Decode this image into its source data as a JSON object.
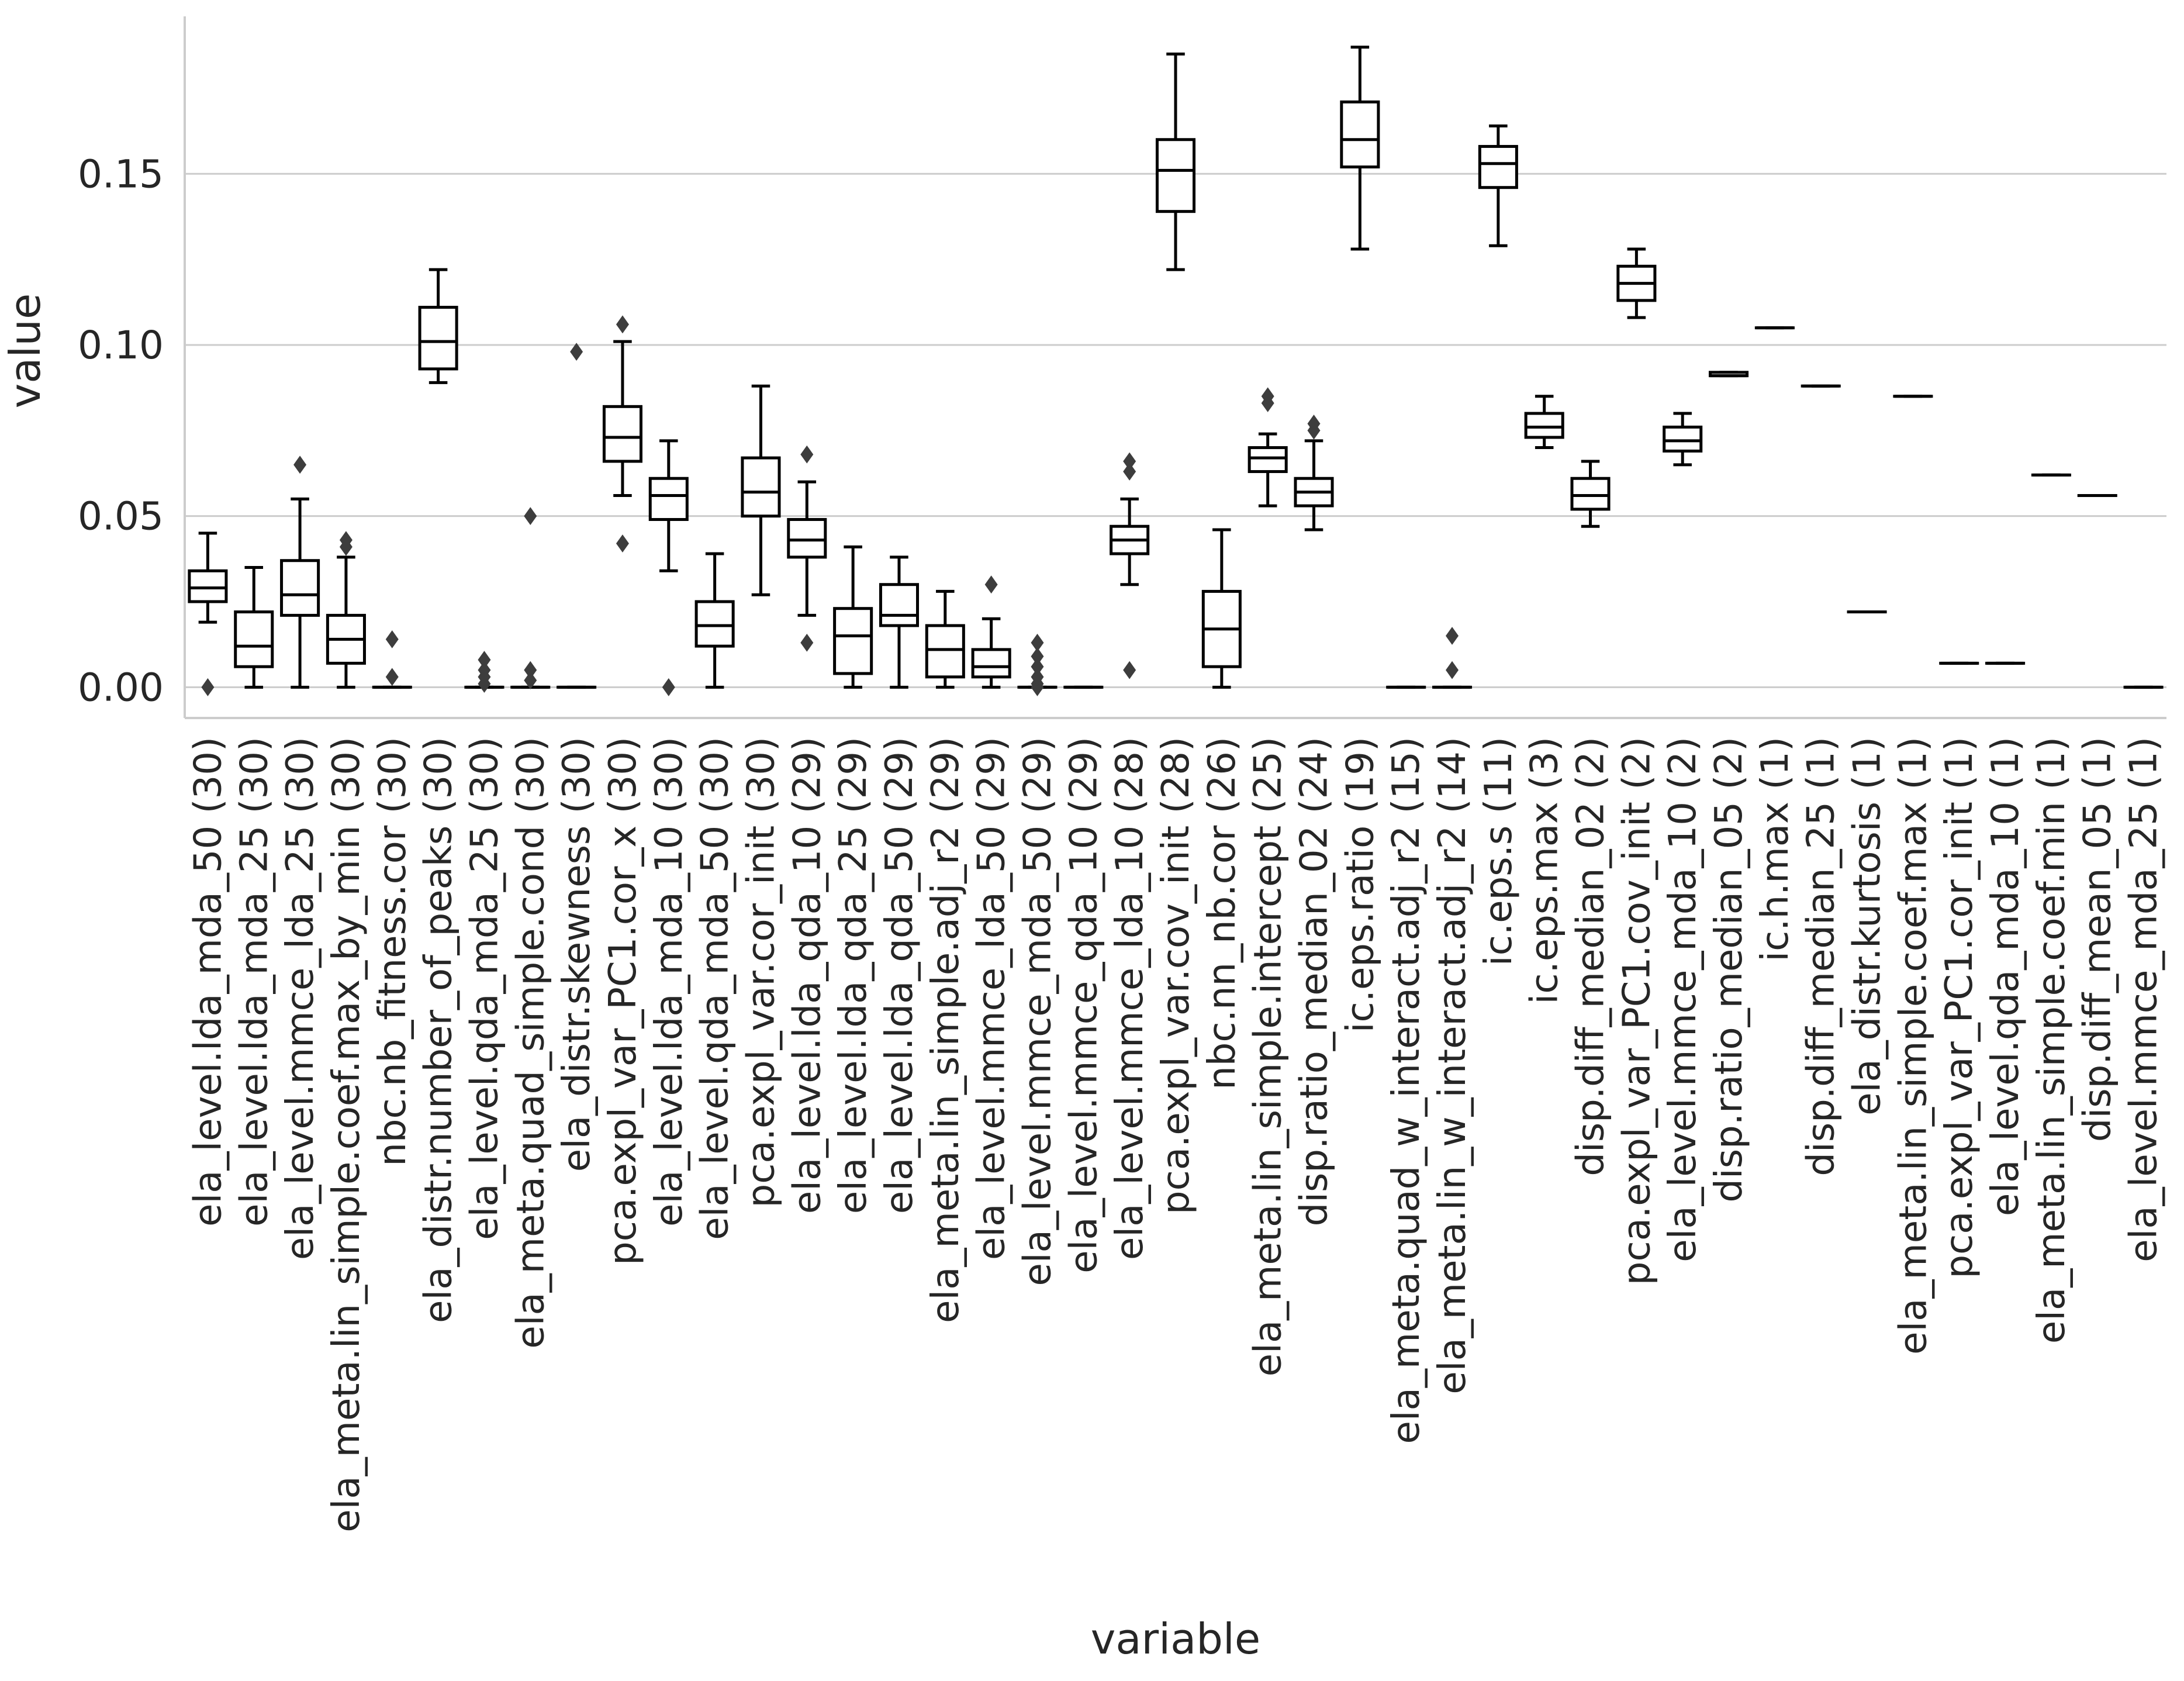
{
  "chart_data": {
    "type": "box",
    "xlabel": "variable",
    "ylabel": "value",
    "ylim": [
      -0.009,
      0.196
    ],
    "yticks": [
      0.0,
      0.05,
      0.1,
      0.15
    ],
    "ytick_labels": [
      "0.00",
      "0.05",
      "0.10",
      "0.15"
    ],
    "grid": "horizontal",
    "box_color": "#ffffff",
    "line_color": "#000000",
    "grid_color": "#cccccc",
    "categories": [
      "ela_level.lda_mda_50 (30)",
      "ela_level.lda_mda_25 (30)",
      "ela_level.mmce_lda_25 (30)",
      "ela_meta.lin_simple.coef.max_by_min (30)",
      "nbc.nb_fitness.cor (30)",
      "ela_distr.number_of_peaks (30)",
      "ela_level.qda_mda_25 (30)",
      "ela_meta.quad_simple.cond (30)",
      "ela_distr.skewness (30)",
      "pca.expl_var_PC1.cor_x (30)",
      "ela_level.lda_mda_10 (30)",
      "ela_level.qda_mda_50 (30)",
      "pca.expl_var.cor_init (30)",
      "ela_level.lda_qda_10 (29)",
      "ela_level.lda_qda_25 (29)",
      "ela_level.lda_qda_50 (29)",
      "ela_meta.lin_simple.adj_r2 (29)",
      "ela_level.mmce_lda_50 (29)",
      "ela_level.mmce_mda_50 (29)",
      "ela_level.mmce_qda_10 (29)",
      "ela_level.mmce_lda_10 (28)",
      "pca.expl_var.cov_init (28)",
      "nbc.nn_nb.cor (26)",
      "ela_meta.lin_simple.intercept (25)",
      "disp.ratio_median_02 (24)",
      "ic.eps.ratio (19)",
      "ela_meta.quad_w_interact.adj_r2 (15)",
      "ela_meta.lin_w_interact.adj_r2 (14)",
      "ic.eps.s (11)",
      "ic.eps.max (3)",
      "disp.diff_median_02 (2)",
      "pca.expl_var_PC1.cov_init (2)",
      "ela_level.mmce_mda_10 (2)",
      "disp.ratio_median_05 (2)",
      "ic.h.max (1)",
      "disp.diff_median_25 (1)",
      "ela_distr.kurtosis (1)",
      "ela_meta.lin_simple.coef.max (1)",
      "pca.expl_var_PC1.cor_init (1)",
      "ela_level.qda_mda_10 (1)",
      "ela_meta.lin_simple.coef.min (1)",
      "disp.diff_mean_05 (1)",
      "ela_level.mmce_mda_25 (1)"
    ],
    "boxes": [
      {
        "whislo": 0.019,
        "q1": 0.025,
        "med": 0.029,
        "q3": 0.034,
        "whishi": 0.045,
        "fliers": [
          0.0
        ]
      },
      {
        "whislo": 0.0,
        "q1": 0.006,
        "med": 0.012,
        "q3": 0.022,
        "whishi": 0.035,
        "fliers": []
      },
      {
        "whislo": 0.0,
        "q1": 0.021,
        "med": 0.027,
        "q3": 0.037,
        "whishi": 0.055,
        "fliers": [
          0.065
        ]
      },
      {
        "whislo": 0.0,
        "q1": 0.007,
        "med": 0.014,
        "q3": 0.021,
        "whishi": 0.038,
        "fliers": [
          0.041,
          0.043
        ]
      },
      {
        "whislo": 0.0,
        "q1": 0.0,
        "med": 0.0,
        "q3": 0.0,
        "whishi": 0.0,
        "fliers": [
          0.003,
          0.014
        ]
      },
      {
        "whislo": 0.089,
        "q1": 0.093,
        "med": 0.101,
        "q3": 0.111,
        "whishi": 0.122,
        "fliers": []
      },
      {
        "whislo": 0.0,
        "q1": 0.0,
        "med": 0.0,
        "q3": 0.0,
        "whishi": 0.0,
        "fliers": [
          0.001,
          0.003,
          0.005,
          0.008
        ]
      },
      {
        "whislo": 0.0,
        "q1": 0.0,
        "med": 0.0,
        "q3": 0.0,
        "whishi": 0.0,
        "fliers": [
          0.002,
          0.005,
          0.05
        ]
      },
      {
        "whislo": 0.0,
        "q1": 0.0,
        "med": 0.0,
        "q3": 0.0,
        "whishi": 0.0,
        "fliers": [
          0.098
        ]
      },
      {
        "whislo": 0.056,
        "q1": 0.066,
        "med": 0.073,
        "q3": 0.082,
        "whishi": 0.101,
        "fliers": [
          0.042,
          0.106
        ]
      },
      {
        "whislo": 0.034,
        "q1": 0.049,
        "med": 0.056,
        "q3": 0.061,
        "whishi": 0.072,
        "fliers": [
          0.0
        ]
      },
      {
        "whislo": 0.0,
        "q1": 0.012,
        "med": 0.018,
        "q3": 0.025,
        "whishi": 0.039,
        "fliers": []
      },
      {
        "whislo": 0.027,
        "q1": 0.05,
        "med": 0.057,
        "q3": 0.067,
        "whishi": 0.088,
        "fliers": []
      },
      {
        "whislo": 0.021,
        "q1": 0.038,
        "med": 0.043,
        "q3": 0.049,
        "whishi": 0.06,
        "fliers": [
          0.013,
          0.068
        ]
      },
      {
        "whislo": 0.0,
        "q1": 0.004,
        "med": 0.015,
        "q3": 0.023,
        "whishi": 0.041,
        "fliers": []
      },
      {
        "whislo": 0.0,
        "q1": 0.018,
        "med": 0.021,
        "q3": 0.03,
        "whishi": 0.038,
        "fliers": []
      },
      {
        "whislo": 0.0,
        "q1": 0.003,
        "med": 0.011,
        "q3": 0.018,
        "whishi": 0.028,
        "fliers": []
      },
      {
        "whislo": 0.0,
        "q1": 0.003,
        "med": 0.006,
        "q3": 0.011,
        "whishi": 0.02,
        "fliers": [
          0.03
        ]
      },
      {
        "whislo": 0.0,
        "q1": 0.0,
        "med": 0.0,
        "q3": 0.0,
        "whishi": 0.0,
        "fliers": [
          0.0,
          0.001,
          0.003,
          0.006,
          0.009,
          0.013
        ]
      },
      {
        "whislo": 0.0,
        "q1": 0.0,
        "med": 0.0,
        "q3": 0.0,
        "whishi": 0.0,
        "fliers": []
      },
      {
        "whislo": 0.03,
        "q1": 0.039,
        "med": 0.043,
        "q3": 0.047,
        "whishi": 0.055,
        "fliers": [
          0.005,
          0.063,
          0.066
        ]
      },
      {
        "whislo": 0.122,
        "q1": 0.139,
        "med": 0.151,
        "q3": 0.16,
        "whishi": 0.185,
        "fliers": []
      },
      {
        "whislo": 0.0,
        "q1": 0.006,
        "med": 0.017,
        "q3": 0.028,
        "whishi": 0.046,
        "fliers": []
      },
      {
        "whislo": 0.053,
        "q1": 0.063,
        "med": 0.067,
        "q3": 0.07,
        "whishi": 0.074,
        "fliers": [
          0.083,
          0.085
        ]
      },
      {
        "whislo": 0.046,
        "q1": 0.053,
        "med": 0.057,
        "q3": 0.061,
        "whishi": 0.072,
        "fliers": [
          0.075,
          0.077
        ]
      },
      {
        "whislo": 0.128,
        "q1": 0.152,
        "med": 0.16,
        "q3": 0.171,
        "whishi": 0.187,
        "fliers": []
      },
      {
        "whislo": 0.0,
        "q1": 0.0,
        "med": 0.0,
        "q3": 0.0,
        "whishi": 0.0,
        "fliers": []
      },
      {
        "whislo": 0.0,
        "q1": 0.0,
        "med": 0.0,
        "q3": 0.0,
        "whishi": 0.0,
        "fliers": [
          0.005,
          0.015
        ]
      },
      {
        "whislo": 0.129,
        "q1": 0.146,
        "med": 0.153,
        "q3": 0.158,
        "whishi": 0.164,
        "fliers": []
      },
      {
        "whislo": 0.07,
        "q1": 0.073,
        "med": 0.076,
        "q3": 0.08,
        "whishi": 0.085,
        "fliers": []
      },
      {
        "whislo": 0.047,
        "q1": 0.052,
        "med": 0.056,
        "q3": 0.061,
        "whishi": 0.066,
        "fliers": []
      },
      {
        "whislo": 0.108,
        "q1": 0.113,
        "med": 0.118,
        "q3": 0.123,
        "whishi": 0.128,
        "fliers": []
      },
      {
        "whislo": 0.065,
        "q1": 0.069,
        "med": 0.072,
        "q3": 0.076,
        "whishi": 0.08,
        "fliers": []
      },
      {
        "whislo": 0.091,
        "q1": 0.091,
        "med": 0.091,
        "q3": 0.092,
        "whishi": 0.092,
        "fliers": []
      },
      {
        "whislo": 0.105,
        "q1": 0.105,
        "med": 0.105,
        "q3": 0.105,
        "whishi": 0.105,
        "fliers": []
      },
      {
        "whislo": 0.088,
        "q1": 0.088,
        "med": 0.088,
        "q3": 0.088,
        "whishi": 0.088,
        "fliers": []
      },
      {
        "whislo": 0.022,
        "q1": 0.022,
        "med": 0.022,
        "q3": 0.022,
        "whishi": 0.022,
        "fliers": []
      },
      {
        "whislo": 0.085,
        "q1": 0.085,
        "med": 0.085,
        "q3": 0.085,
        "whishi": 0.085,
        "fliers": []
      },
      {
        "whislo": 0.007,
        "q1": 0.007,
        "med": 0.007,
        "q3": 0.007,
        "whishi": 0.007,
        "fliers": []
      },
      {
        "whislo": 0.007,
        "q1": 0.007,
        "med": 0.007,
        "q3": 0.007,
        "whishi": 0.007,
        "fliers": []
      },
      {
        "whislo": 0.062,
        "q1": 0.062,
        "med": 0.062,
        "q3": 0.062,
        "whishi": 0.062,
        "fliers": []
      },
      {
        "whislo": 0.056,
        "q1": 0.056,
        "med": 0.056,
        "q3": 0.056,
        "whishi": 0.056,
        "fliers": []
      },
      {
        "whislo": 0.0,
        "q1": 0.0,
        "med": 0.0,
        "q3": 0.0,
        "whishi": 0.0,
        "fliers": []
      }
    ]
  }
}
